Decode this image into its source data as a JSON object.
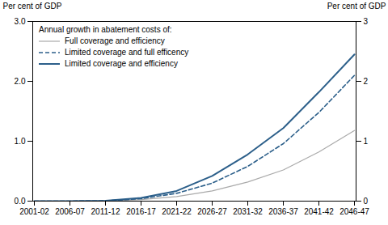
{
  "chart_data": {
    "type": "line",
    "categories": [
      "2001-02",
      "2006-07",
      "2011-12",
      "2016-17",
      "2021-22",
      "2026-27",
      "2031-32",
      "2036-37",
      "2041-42",
      "2046-47"
    ],
    "series": [
      {
        "name": "Full coverage and efficiency",
        "color": "#aaaaaa",
        "line_style": "solid",
        "values": [
          0.0,
          0.0,
          0.003,
          0.025,
          0.075,
          0.17,
          0.32,
          0.52,
          0.82,
          1.18
        ]
      },
      {
        "name": "Limited coverage and full efficency",
        "color": "#2c5f8a",
        "line_style": "dashed",
        "values": [
          0.0,
          0.0,
          0.005,
          0.04,
          0.13,
          0.3,
          0.58,
          0.96,
          1.48,
          2.1
        ]
      },
      {
        "name": "Limited coverage and efficiency",
        "color": "#2c5f8a",
        "line_style": "solid",
        "values": [
          0.0,
          0.0,
          0.008,
          0.055,
          0.17,
          0.42,
          0.78,
          1.22,
          1.82,
          2.45
        ]
      }
    ],
    "ylabel": "Per cent of GDP",
    "y2label": "Per cent of GDP",
    "ylim": [
      0,
      3
    ],
    "yticks": [
      0,
      1,
      2,
      3
    ],
    "y2lim": [
      0,
      3
    ],
    "y2ticks": [
      0,
      1,
      2,
      3
    ],
    "legend_title": "Annual growth in abatement costs of:",
    "legend": "upper left",
    "grid": false
  }
}
